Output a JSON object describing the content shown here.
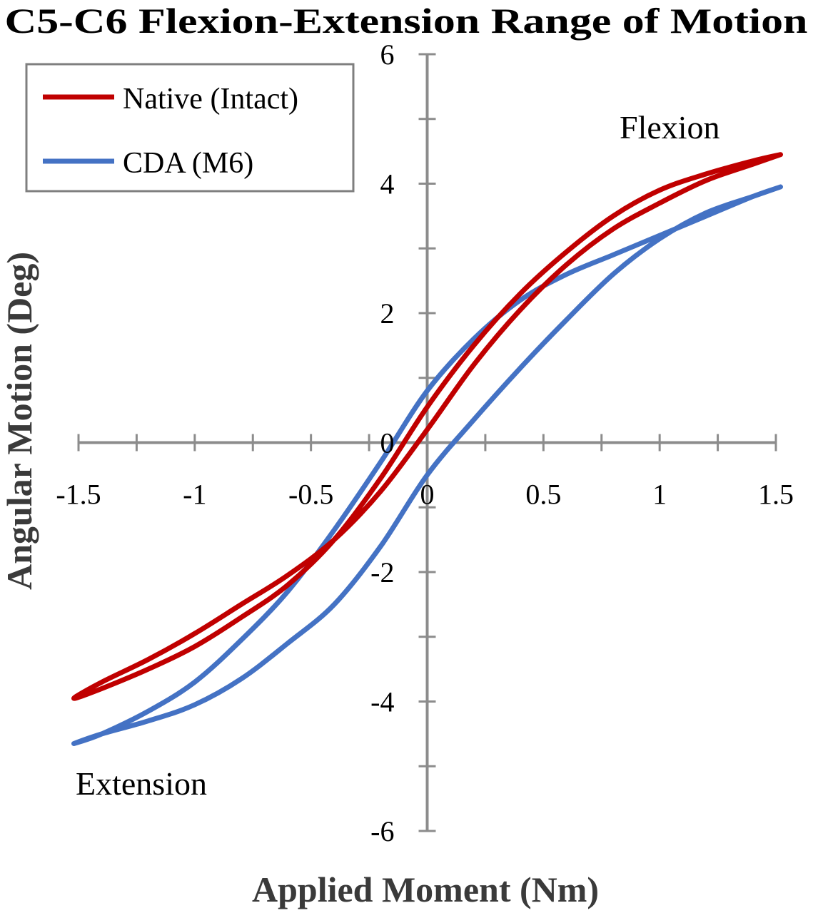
{
  "chart_data": {
    "type": "line",
    "title": "C5-C6 Flexion-Extension Range of Motion",
    "xlabel": "Applied Moment (Nm)",
    "ylabel": "Angular Motion (Deg)",
    "xlim": [
      -1.5,
      1.5
    ],
    "ylim": [
      -6,
      6
    ],
    "x_tick_labels": [
      "-1.5",
      "-1",
      "-0.5",
      "0",
      "0.5",
      "1",
      "1.5"
    ],
    "y_tick_labels": [
      "-6",
      "-4",
      "-2",
      "0",
      "2",
      "4",
      "6"
    ],
    "grid": false,
    "legend_position": "top-left",
    "annotations": {
      "flexion": "Flexion",
      "extension": "Extension"
    },
    "series": [
      {
        "name": "Native (Intact)",
        "color": "#c00000",
        "x": [
          1.52,
          1.4,
          1.2,
          1.0,
          0.8,
          0.6,
          0.4,
          0.2,
          0.0,
          -0.2,
          -0.4,
          -0.6,
          -0.8,
          -1.0,
          -1.2,
          -1.4,
          -1.52,
          -1.4,
          -1.2,
          -1.0,
          -0.8,
          -0.6,
          -0.4,
          -0.2,
          0.0,
          0.2,
          0.4,
          0.6,
          0.8,
          1.0,
          1.2,
          1.4,
          1.52
        ],
        "y": [
          4.45,
          4.3,
          4.05,
          3.7,
          3.3,
          2.75,
          2.05,
          1.2,
          0.2,
          -0.75,
          -1.5,
          -2.05,
          -2.5,
          -2.95,
          -3.35,
          -3.7,
          -3.95,
          -3.8,
          -3.5,
          -3.15,
          -2.7,
          -2.2,
          -1.5,
          -0.55,
          0.55,
          1.5,
          2.3,
          2.95,
          3.5,
          3.9,
          4.15,
          4.35,
          4.45
        ]
      },
      {
        "name": "CDA (M6)",
        "color": "#4472c4",
        "x": [
          1.52,
          1.4,
          1.2,
          1.0,
          0.8,
          0.6,
          0.4,
          0.2,
          0.0,
          -0.2,
          -0.4,
          -0.6,
          -0.8,
          -1.0,
          -1.2,
          -1.4,
          -1.52,
          -1.4,
          -1.2,
          -1.0,
          -0.8,
          -0.6,
          -0.4,
          -0.2,
          0.0,
          0.2,
          0.4,
          0.6,
          0.8,
          1.0,
          1.2,
          1.4,
          1.52
        ],
        "y": [
          3.95,
          3.8,
          3.5,
          3.2,
          2.9,
          2.6,
          2.2,
          1.6,
          0.8,
          -0.3,
          -1.35,
          -2.3,
          -3.05,
          -3.7,
          -4.15,
          -4.5,
          -4.65,
          -4.5,
          -4.3,
          -4.05,
          -3.65,
          -3.1,
          -2.5,
          -1.6,
          -0.5,
          0.35,
          1.15,
          1.9,
          2.6,
          3.15,
          3.55,
          3.8,
          3.95
        ]
      }
    ]
  }
}
